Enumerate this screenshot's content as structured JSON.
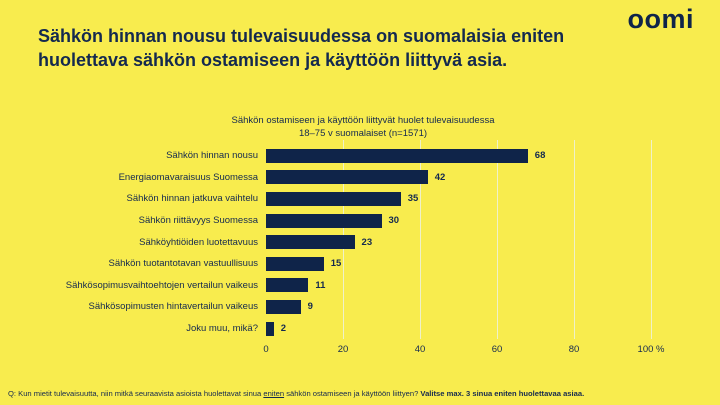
{
  "colors": {
    "background": "#F8EC4E",
    "navy_text": "#14294F",
    "bar": "#0F2449",
    "gridline": "#EFF1C9"
  },
  "header": {
    "logo_text": "oomi",
    "title_line1": "Sähkön hinnan nousu tulevaisuudessa on suomalaisia eniten",
    "title_line2": "huolettava sähkön ostamiseen ja käyttöön liittyvä asia."
  },
  "chart_data": {
    "type": "bar",
    "orientation": "horizontal",
    "title": "Sähkön ostamiseen ja käyttöön liittyvät huolet tulevaisuudessa",
    "subtitle": "18–75 v suomalaiset (n=1571)",
    "categories": [
      "Sähkön hinnan nousu",
      "Energiaomavaraisuus Suomessa",
      "Sähkön hinnan jatkuva vaihtelu",
      "Sähkön riittävyys Suomessa",
      "Sähköyhtiöiden luotettavuus",
      "Sähkön tuotantotavan vastuullisuus",
      "Sähkösopimusvaihtoehtojen vertailun vaikeus",
      "Sähkösopimusten hintavertailun vaikeus",
      "Joku muu, mikä?"
    ],
    "values": [
      68,
      42,
      35,
      30,
      23,
      15,
      11,
      9,
      2
    ],
    "unit": "%",
    "xlim": [
      0,
      100
    ],
    "x_ticks": [
      {
        "label": "0",
        "pos": 0
      },
      {
        "label": "20",
        "pos": 20
      },
      {
        "label": "40",
        "pos": 40
      },
      {
        "label": "60",
        "pos": 60
      },
      {
        "label": "80",
        "pos": 80
      },
      {
        "label": "100 %",
        "pos": 100
      }
    ],
    "grid": "vertical",
    "legend": "none",
    "value_labels": true
  },
  "footnote": {
    "prefix": "Q: Kun mietit tulevaisuutta, niin mitkä seuraavista asioista huolettavat sinua ",
    "underlined": "eniten",
    "middle": " sähkön ostamiseen ja käyttöön liittyen? ",
    "bold": "Valitse max. 3 sinua eniten huolettavaa asiaa."
  }
}
